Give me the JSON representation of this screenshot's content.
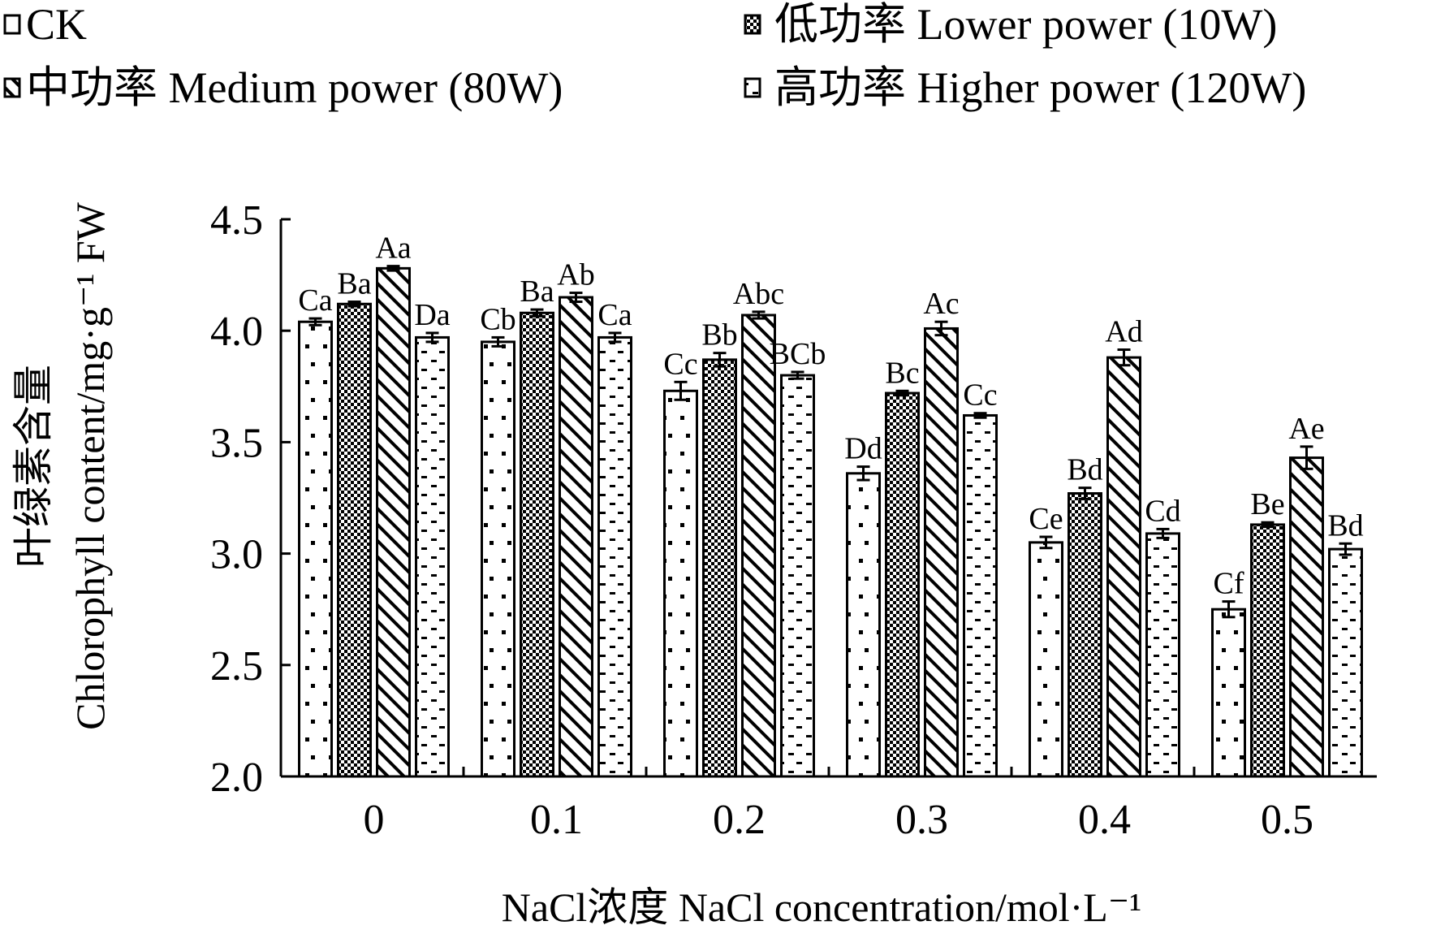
{
  "chart_data": {
    "type": "bar",
    "title": "",
    "xlabel": "NaCl浓度 NaCl concentration/mol·L⁻¹",
    "ylabel_cn": "叶绿素含量",
    "ylabel": "Chlorophyll content/mg·g⁻¹ FW",
    "ylim": [
      2.0,
      4.5
    ],
    "yticks": [
      "2.0",
      "2.5",
      "3.0",
      "3.5",
      "4.0",
      "4.5"
    ],
    "categories": [
      "0",
      "0.1",
      "0.2",
      "0.3",
      "0.4",
      "0.5"
    ],
    "legend_position": "top",
    "series": [
      {
        "name": "CK",
        "pattern": "dots",
        "values": [
          4.04,
          3.95,
          3.73,
          3.36,
          3.05,
          2.75
        ],
        "errors": [
          0.015,
          0.02,
          0.04,
          0.03,
          0.025,
          0.035
        ],
        "labels": [
          "Ca",
          "Cb",
          "Cc",
          "Dd",
          "Ce",
          "Cf"
        ]
      },
      {
        "name": "低功率 Lower power (10W)",
        "pattern": "checker",
        "values": [
          4.12,
          4.08,
          3.87,
          3.72,
          3.27,
          3.13
        ],
        "errors": [
          0.01,
          0.015,
          0.03,
          0.01,
          0.025,
          0.01
        ],
        "labels": [
          "Ba",
          "Ba",
          "Bb",
          "Bc",
          "Bd",
          "Be"
        ]
      },
      {
        "name": "中功率 Medium power (80W)",
        "pattern": "diagonal",
        "values": [
          4.28,
          4.15,
          4.07,
          4.01,
          3.88,
          3.43
        ],
        "errors": [
          0.01,
          0.02,
          0.015,
          0.03,
          0.035,
          0.05
        ],
        "labels": [
          "Aa",
          "Ab",
          "Abc",
          "Ac",
          "Ad",
          "Ae"
        ]
      },
      {
        "name": "高功率 Higher power (120W)",
        "pattern": "dashes",
        "values": [
          3.97,
          3.97,
          3.8,
          3.62,
          3.09,
          3.02
        ],
        "errors": [
          0.02,
          0.02,
          0.015,
          0.01,
          0.02,
          0.025
        ],
        "labels": [
          "Da",
          "Ca",
          "BCb",
          "Cc",
          "Cd",
          "Bd"
        ]
      }
    ]
  }
}
